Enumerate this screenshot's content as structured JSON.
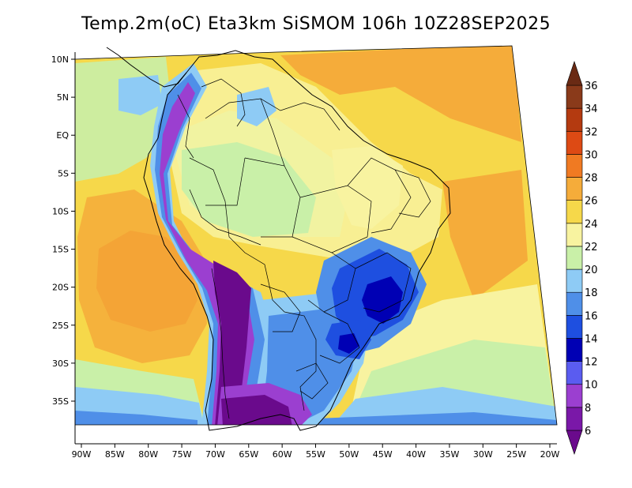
{
  "title": "Temp.2m(oC) Eta3km SiSMOM 106h 10Z28SEP2025",
  "map": {
    "variable": "2 m temperature",
    "units": "oC",
    "lat_labels": [
      "10N",
      "5N",
      "EQ",
      "5S",
      "10S",
      "15S",
      "20S",
      "25S",
      "30S",
      "35S"
    ],
    "lat_values": [
      10,
      5,
      0,
      -5,
      -10,
      -15,
      -20,
      -25,
      -30,
      -35
    ],
    "lon_labels": [
      "90W",
      "85W",
      "80W",
      "75W",
      "70W",
      "65W",
      "60W",
      "55W",
      "50W",
      "45W",
      "40W",
      "35W",
      "30W",
      "25W",
      "20W"
    ],
    "lon_values": [
      -90,
      -85,
      -80,
      -75,
      -70,
      -65,
      -60,
      -55,
      -50,
      -45,
      -40,
      -35,
      -30,
      -25,
      -20
    ]
  },
  "colorbar": {
    "labels": [
      "6",
      "8",
      "10",
      "12",
      "14",
      "16",
      "18",
      "20",
      "22",
      "24",
      "26",
      "28",
      "30",
      "32",
      "34",
      "36"
    ],
    "bins": [
      {
        "lo": 4,
        "hi": 6,
        "color": "#6a0a8c"
      },
      {
        "lo": 6,
        "hi": 8,
        "color": "#7a18a8"
      },
      {
        "lo": 8,
        "hi": 10,
        "color": "#9b3fd0"
      },
      {
        "lo": 10,
        "hi": 12,
        "color": "#5a5cf0"
      },
      {
        "lo": 12,
        "hi": 14,
        "color": "#0000b4"
      },
      {
        "lo": 14,
        "hi": 16,
        "color": "#1e4fe0"
      },
      {
        "lo": 16,
        "hi": 18,
        "color": "#4f8fe8"
      },
      {
        "lo": 18,
        "hi": 20,
        "color": "#8ecbf5"
      },
      {
        "lo": 20,
        "hi": 22,
        "color": "#c9f0a8"
      },
      {
        "lo": 22,
        "hi": 24,
        "color": "#f8f3a0"
      },
      {
        "lo": 24,
        "hi": 26,
        "color": "#f6d84a"
      },
      {
        "lo": 26,
        "hi": 28,
        "color": "#f5ac3a"
      },
      {
        "lo": 28,
        "hi": 30,
        "color": "#f07a22"
      },
      {
        "lo": 30,
        "hi": 32,
        "color": "#dd4a14"
      },
      {
        "lo": 32,
        "hi": 34,
        "color": "#b43a10"
      },
      {
        "lo": 34,
        "hi": 36,
        "color": "#8a3a1a"
      },
      {
        "lo": 36,
        "hi": 38,
        "color": "#6a2a14"
      }
    ]
  }
}
